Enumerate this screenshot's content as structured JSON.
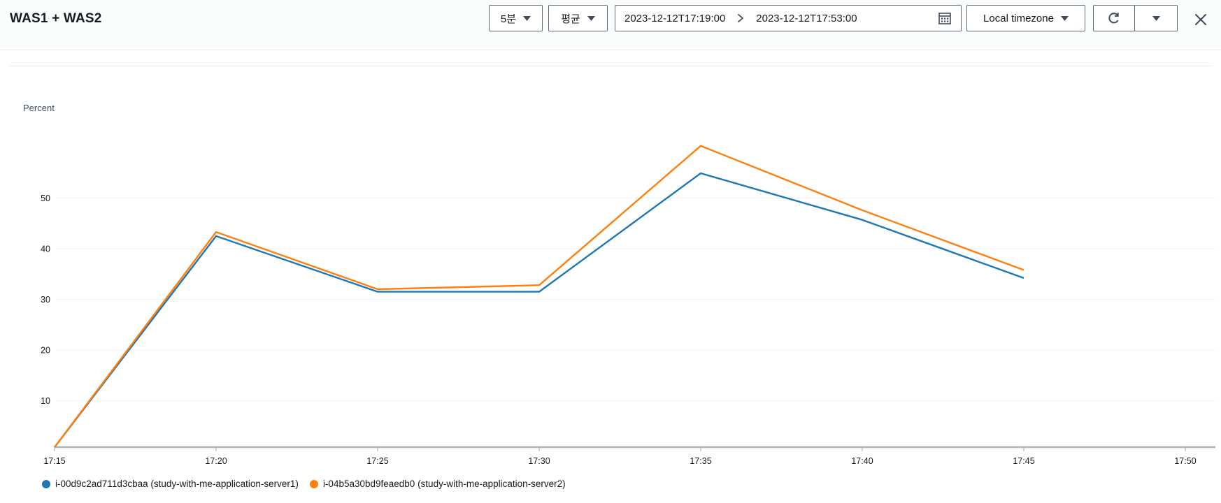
{
  "header": {
    "title": "WAS1 + WAS2"
  },
  "toolbar": {
    "period": {
      "label": "5분"
    },
    "statistic": {
      "label": "평균"
    },
    "date_range": {
      "start": "2023-12-12T17:19:00",
      "end": "2023-12-12T17:53:00"
    },
    "timezone": {
      "label": "Local timezone"
    }
  },
  "icons": {
    "caret-down-icon": "▼",
    "chevron-right-icon": "❯",
    "calendar-icon": "▦",
    "refresh-icon": "⟳",
    "close-icon": "✕"
  },
  "colors": {
    "series_blue": "#1f77b4",
    "series_orange": "#ff7f0e",
    "axis": "#aab7b8",
    "gridline": "#f0f1f1",
    "border": "#5f6b7a",
    "text": "#16191f"
  },
  "chart_data": {
    "type": "line",
    "title": "WAS1 + WAS2",
    "xlabel": "",
    "ylabel": "Percent",
    "grid": true,
    "legend_position": "bottom",
    "x_axis": {
      "tick_labels": [
        "17:15",
        "17:20",
        "17:25",
        "17:30",
        "17:35",
        "17:40",
        "17:45",
        "17:50"
      ],
      "tick_minutes": [
        0,
        5,
        10,
        15,
        20,
        25,
        30,
        35
      ]
    },
    "y_axis": {
      "ticks": [
        10,
        20,
        30,
        40,
        50
      ],
      "range": [
        0,
        65
      ]
    },
    "x_times": [
      "17:15",
      "17:20",
      "17:25",
      "17:30",
      "17:35",
      "17:40",
      "17:45"
    ],
    "x_minutes": [
      0,
      5,
      10,
      15,
      20,
      25,
      30
    ],
    "series": [
      {
        "name": "i-00d9c2ad711d3cbaa (study-with-me-application-server1)",
        "color": "#1f77b4",
        "values": [
          0.8,
          42.5,
          31.5,
          31.5,
          54.9,
          45.7,
          34.2
        ]
      },
      {
        "name": "i-04b5a30bd9feaedb0 (study-with-me-application-server2)",
        "color": "#ff7f0e",
        "values": [
          0.8,
          43.3,
          32.0,
          32.8,
          60.3,
          47.6,
          35.8
        ]
      }
    ]
  }
}
